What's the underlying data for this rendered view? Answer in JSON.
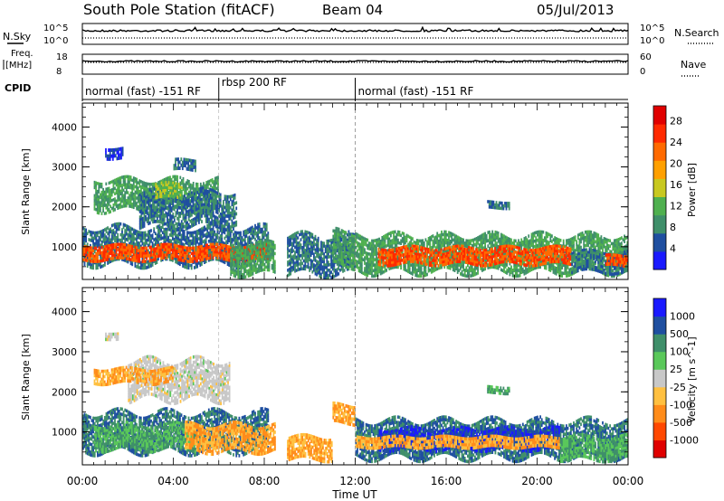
{
  "header": {
    "station": "South Pole Station (fitACF)",
    "beam": "Beam 04",
    "date": "05/Jul/2013"
  },
  "aux_panels": {
    "nsky_label": "N.Sky",
    "nsearch_label": "N.Search",
    "noise_ticks": [
      "10^5",
      "10^0"
    ],
    "freq_label_1": "Freq.",
    "freq_label_2": "[MHz]",
    "freq_ticks": [
      "18",
      "8"
    ],
    "nave_label": "Nave",
    "nave_ticks": [
      "60",
      "0"
    ],
    "cpid_label": "CPID",
    "cpid_segments": [
      {
        "label": "normal (fast) -151 RF",
        "start_hour": 0,
        "end_hour": 6
      },
      {
        "label": "rbsp 200 RF",
        "start_hour": 6,
        "end_hour": 12
      },
      {
        "label": "normal (fast) -151 RF",
        "start_hour": 12,
        "end_hour": 24
      }
    ]
  },
  "x_axis": {
    "label": "Time UT",
    "tick_labels": [
      "00:00",
      "04:00",
      "08:00",
      "12:00",
      "16:00",
      "20:00",
      "00:00"
    ],
    "range_hours": [
      0,
      24
    ]
  },
  "colors": {
    "power": [
      "#1a1aff",
      "#1f4fa0",
      "#3f8f6a",
      "#4fb04f",
      "#c8c820",
      "#ffa000",
      "#ff6a00",
      "#ff2a00",
      "#e00000"
    ],
    "velocity": [
      "#e00000",
      "#ff4800",
      "#ff8c1a",
      "#ffc040",
      "#c8c8c8",
      "#5ac85a",
      "#3f8f6a",
      "#1f4fa0",
      "#1a1aff"
    ]
  },
  "chart_data": [
    {
      "type": "heatmap",
      "name": "power",
      "ylabel": "Slant Range [km]",
      "y_ticks": [
        "1000",
        "2000",
        "3000",
        "4000"
      ],
      "ylim": [
        180,
        4600
      ],
      "colorbar_label": "Power [dB]",
      "colorbar_ticks": [
        "4",
        "8",
        "12",
        "16",
        "20",
        "24",
        "28"
      ],
      "regions": [
        {
          "t0": 0.0,
          "t1": 8.2,
          "r0": 550,
          "r1": 1500,
          "level": 8
        },
        {
          "t0": 0.0,
          "t1": 8.2,
          "r0": 650,
          "r1": 1050,
          "level": 28
        },
        {
          "t0": 0.5,
          "t1": 6.0,
          "r0": 1900,
          "r1": 2700,
          "level": 12
        },
        {
          "t0": 2.5,
          "t1": 6.8,
          "r0": 1500,
          "r1": 2400,
          "level": 8
        },
        {
          "t0": 3.2,
          "t1": 4.4,
          "r0": 2200,
          "r1": 2600,
          "level": 16
        },
        {
          "t0": 1.0,
          "t1": 1.8,
          "r0": 3200,
          "r1": 3500,
          "level": 4
        },
        {
          "t0": 4.0,
          "t1": 5.0,
          "r0": 2900,
          "r1": 3200,
          "level": 8
        },
        {
          "t0": 6.5,
          "t1": 8.5,
          "r0": 300,
          "r1": 1100,
          "level": 12
        },
        {
          "t0": 9.0,
          "t1": 12.0,
          "r0": 300,
          "r1": 1300,
          "level": 8
        },
        {
          "t0": 11.0,
          "t1": 12.0,
          "r0": 500,
          "r1": 1400,
          "level": 12
        },
        {
          "t0": 12.0,
          "t1": 24.0,
          "r0": 350,
          "r1": 1300,
          "level": 12
        },
        {
          "t0": 13.0,
          "t1": 21.5,
          "r0": 550,
          "r1": 1000,
          "level": 28
        },
        {
          "t0": 21.5,
          "t1": 24.0,
          "r0": 350,
          "r1": 900,
          "level": 8
        },
        {
          "t0": 23.0,
          "t1": 24.0,
          "r0": 500,
          "r1": 800,
          "level": 28
        },
        {
          "t0": 17.8,
          "t1": 18.8,
          "r0": 1950,
          "r1": 2150,
          "level": 8
        }
      ]
    },
    {
      "type": "heatmap",
      "name": "velocity",
      "ylabel": "Slant Range [km]",
      "y_ticks": [
        "1000",
        "2000",
        "3000",
        "4000"
      ],
      "ylim": [
        180,
        4600
      ],
      "colorbar_label": "Velocity [m s^-1]",
      "colorbar_ticks": [
        "1000",
        "500",
        "100",
        "25",
        "-25",
        "-100",
        "-500",
        "-1000"
      ],
      "regions": [
        {
          "t0": 0.0,
          "t1": 8.2,
          "r0": 500,
          "r1": 1500,
          "level": 500
        },
        {
          "t0": 0.5,
          "t1": 5.0,
          "r0": 550,
          "r1": 1200,
          "level": 100
        },
        {
          "t0": 4.5,
          "t1": 8.5,
          "r0": 500,
          "r1": 1200,
          "level": -100
        },
        {
          "t0": 2.0,
          "t1": 6.5,
          "r0": 1800,
          "r1": 2800,
          "level": 0
        },
        {
          "t0": 0.5,
          "t1": 4.0,
          "r0": 2200,
          "r1": 2600,
          "level": -100
        },
        {
          "t0": 1.0,
          "t1": 1.6,
          "r0": 3300,
          "r1": 3500,
          "level": 0
        },
        {
          "t0": 9.0,
          "t1": 11.0,
          "r0": 300,
          "r1": 900,
          "level": -100
        },
        {
          "t0": 11.0,
          "t1": 12.0,
          "r0": 1200,
          "r1": 1700,
          "level": -100
        },
        {
          "t0": 12.0,
          "t1": 24.0,
          "r0": 350,
          "r1": 1300,
          "level": 500
        },
        {
          "t0": 13.0,
          "t1": 21.0,
          "r0": 550,
          "r1": 1100,
          "level": 1000
        },
        {
          "t0": 12.0,
          "t1": 21.0,
          "r0": 600,
          "r1": 900,
          "level": -100
        },
        {
          "t0": 21.0,
          "t1": 24.0,
          "r0": 300,
          "r1": 900,
          "level": 100
        },
        {
          "t0": 17.8,
          "t1": 18.8,
          "r0": 1950,
          "r1": 2150,
          "level": 100
        }
      ]
    }
  ]
}
